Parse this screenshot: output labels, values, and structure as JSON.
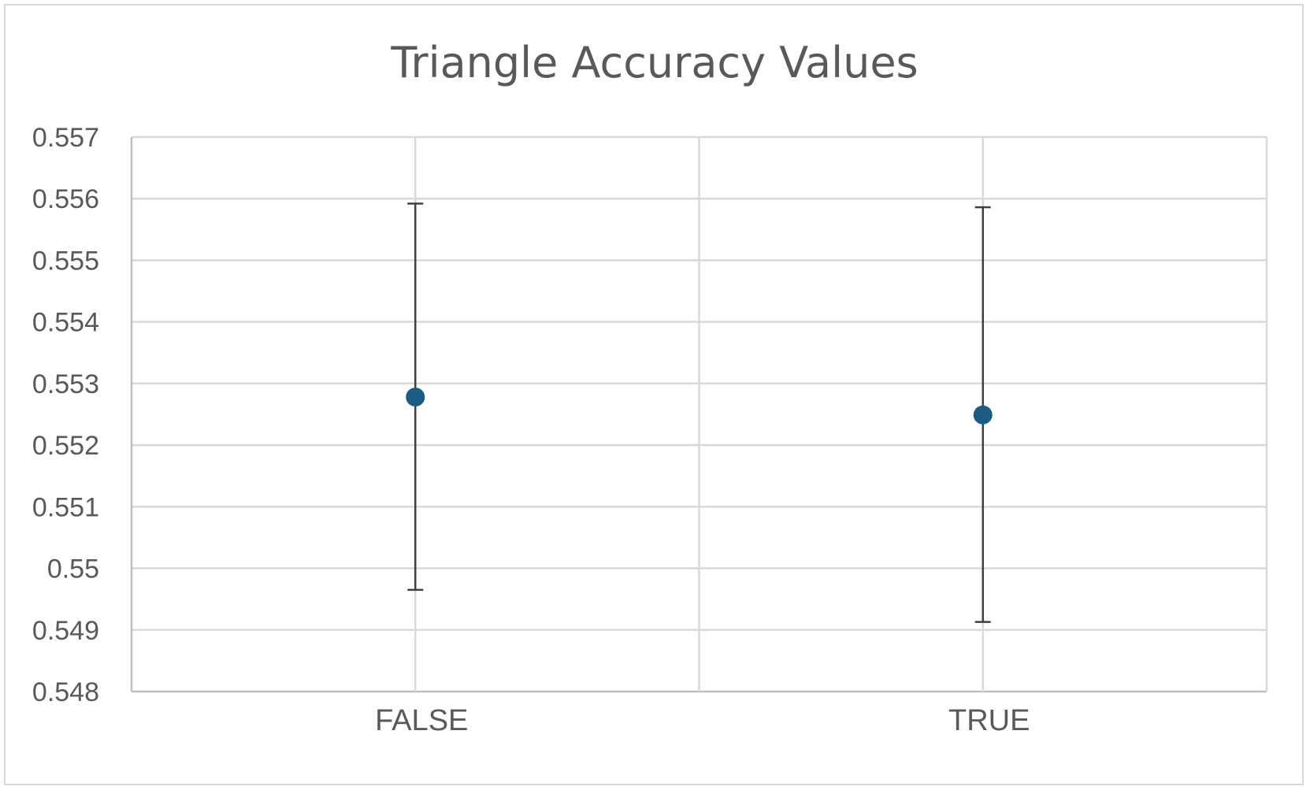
{
  "chart_data": {
    "type": "scatter",
    "title": "Triangle Accuracy Values",
    "xlabel": "",
    "ylabel": "",
    "categories": [
      "FALSE",
      "TRUE"
    ],
    "values": [
      0.55278,
      0.55249
    ],
    "error_low": [
      0.54965,
      0.54913
    ],
    "error_high": [
      0.55592,
      0.55586
    ],
    "ylim": [
      0.548,
      0.557
    ],
    "yticks": [
      "0.548",
      "0.549",
      "0.55",
      "0.551",
      "0.552",
      "0.553",
      "0.554",
      "0.555",
      "0.556",
      "0.557"
    ],
    "grid": true,
    "legend": "none",
    "marker_color": "#1b5b82"
  }
}
